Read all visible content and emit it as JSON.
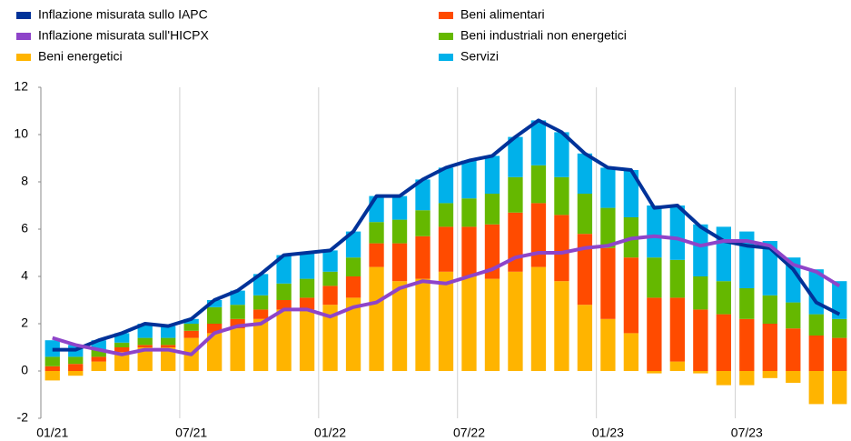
{
  "chart_data": {
    "type": "bar",
    "categories": [
      "01/21",
      null,
      null,
      null,
      null,
      null,
      "07/21",
      null,
      null,
      null,
      null,
      null,
      "01/22",
      null,
      null,
      null,
      null,
      null,
      "07/22",
      null,
      null,
      null,
      null,
      null,
      "01/23",
      null,
      null,
      null,
      null,
      null,
      "07/23",
      null,
      null,
      null,
      null
    ],
    "ylim": [
      -2,
      12
    ],
    "yticks": [
      -2,
      0,
      2,
      4,
      6,
      8,
      10,
      12
    ],
    "series": [
      {
        "name": "Inflazione misurata sullo IAPC",
        "type": "line",
        "color": "#003299",
        "values": [
          0.9,
          0.9,
          1.3,
          1.6,
          2.0,
          1.9,
          2.2,
          3.0,
          3.4,
          4.1,
          4.9,
          5.0,
          5.1,
          5.9,
          7.4,
          7.4,
          8.1,
          8.6,
          8.9,
          9.1,
          9.9,
          10.6,
          10.1,
          9.2,
          8.6,
          8.5,
          6.9,
          7.0,
          6.1,
          5.5,
          5.3,
          5.2,
          4.3,
          2.9,
          2.4
        ]
      },
      {
        "name": "Inflazione misurata sull'HICPX",
        "type": "line",
        "color": "#8e44c9",
        "values": [
          1.4,
          1.1,
          0.9,
          0.7,
          0.9,
          0.9,
          0.7,
          1.6,
          1.9,
          2.0,
          2.6,
          2.6,
          2.3,
          2.7,
          2.9,
          3.5,
          3.8,
          3.7,
          4.0,
          4.3,
          4.8,
          5.0,
          5.0,
          5.2,
          5.3,
          5.6,
          5.7,
          5.6,
          5.3,
          5.5,
          5.5,
          5.3,
          4.5,
          4.2,
          3.6
        ]
      },
      {
        "name": "Beni energetici",
        "type": "bar",
        "color": "#ffb400",
        "values": [
          -0.4,
          -0.2,
          0.4,
          0.8,
          1.0,
          1.0,
          1.4,
          1.6,
          1.8,
          2.2,
          2.6,
          2.6,
          2.8,
          3.1,
          4.4,
          3.8,
          3.9,
          4.2,
          4.0,
          3.9,
          4.2,
          4.4,
          3.8,
          2.8,
          2.2,
          1.6,
          -0.1,
          0.4,
          -0.1,
          -0.6,
          -0.6,
          -0.3,
          -0.5,
          -1.4,
          -1.4
        ]
      },
      {
        "name": "Beni alimentari",
        "type": "bar",
        "color": "#ff4b00",
        "values": [
          0.2,
          0.3,
          0.2,
          0.2,
          0.1,
          0.1,
          0.3,
          0.4,
          0.4,
          0.4,
          0.4,
          0.5,
          0.8,
          0.9,
          1.0,
          1.6,
          1.8,
          1.9,
          2.1,
          2.3,
          2.5,
          2.7,
          2.8,
          3.0,
          3.0,
          3.2,
          3.1,
          2.7,
          2.6,
          2.4,
          2.2,
          2.0,
          1.8,
          1.5,
          1.4
        ]
      },
      {
        "name": "Beni industriali non energetici",
        "type": "bar",
        "color": "#65b800",
        "values": [
          0.4,
          0.3,
          0.3,
          0.2,
          0.3,
          0.3,
          0.3,
          0.7,
          0.6,
          0.6,
          0.7,
          0.8,
          0.6,
          0.8,
          0.9,
          1.0,
          1.1,
          1.0,
          1.2,
          1.3,
          1.5,
          1.6,
          1.6,
          1.7,
          1.7,
          1.7,
          1.7,
          1.6,
          1.4,
          1.4,
          1.3,
          1.2,
          1.1,
          0.9,
          0.8
        ]
      },
      {
        "name": "Servizi",
        "type": "bar",
        "color": "#00b1ea",
        "values": [
          0.7,
          0.5,
          0.4,
          0.4,
          0.6,
          0.5,
          0.2,
          0.3,
          0.6,
          0.9,
          1.2,
          1.1,
          0.9,
          1.1,
          1.1,
          1.0,
          1.3,
          1.5,
          1.6,
          1.6,
          1.7,
          1.9,
          1.9,
          1.7,
          1.7,
          2.0,
          2.2,
          2.3,
          2.2,
          2.3,
          2.4,
          2.3,
          1.9,
          1.9,
          1.6
        ]
      }
    ]
  }
}
